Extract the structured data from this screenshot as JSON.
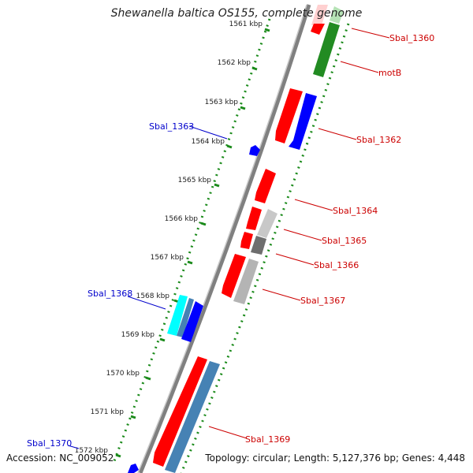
{
  "title": "Shewanella baltica OS155, complete genome",
  "accession": "Accession: NC_009052",
  "topology": "Topology: circular; Length: 5,127,376 bp; Genes: 4,448",
  "colors": {
    "forward": "#ff0000",
    "reverse": "#0000ff",
    "cyan": "#00ffff",
    "steelblue": "#4682b4",
    "green": "#228b22",
    "light_green": "#b5e2b5",
    "gray": "#b4b4b4",
    "dark_gray": "#6e6e6e",
    "backbone": "#808080",
    "dots": "#1a8a1a",
    "label_red": "#cc0000",
    "label_blue": "#0000cc"
  },
  "ticks": [
    {
      "label": "1561 kbp"
    },
    {
      "label": "1562 kbp"
    },
    {
      "label": "1563 kbp"
    },
    {
      "label": "1564 kbp"
    },
    {
      "label": "1565 kbp"
    },
    {
      "label": "1566 kbp"
    },
    {
      "label": "1567 kbp"
    },
    {
      "label": "1568 kbp"
    },
    {
      "label": "1569 kbp"
    },
    {
      "label": "1570 kbp"
    },
    {
      "label": "1571 kbp"
    },
    {
      "label": "1572 kbp"
    }
  ],
  "gene_labels": {
    "sbal_1360": "Sbal_1360",
    "motb": "motB",
    "sbal_1362": "Sbal_1362",
    "sbal_1363": "Sbal_1363",
    "sbal_1364": "Sbal_1364",
    "sbal_1365": "Sbal_1365",
    "sbal_1366": "Sbal_1366",
    "sbal_1367": "Sbal_1367",
    "sbal_1368": "Sbal_1368",
    "sbal_1369": "Sbal_1369",
    "sbal_1370": "Sbal_1370"
  }
}
